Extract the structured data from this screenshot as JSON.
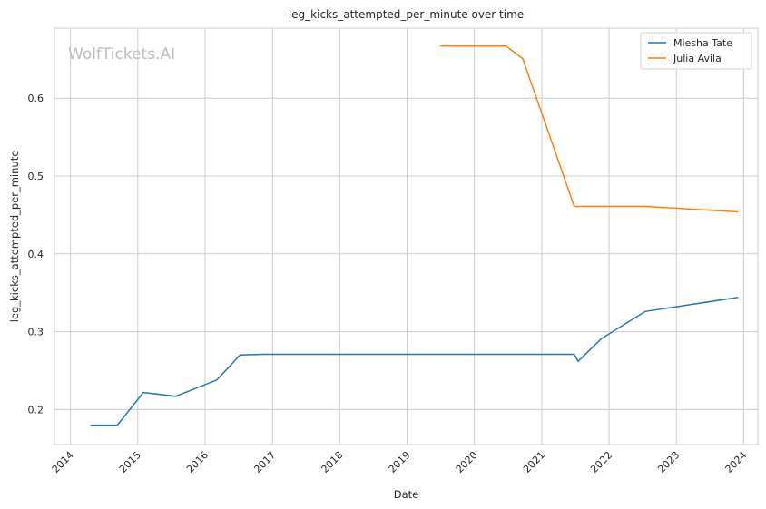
{
  "chart_data": {
    "type": "line",
    "title": "leg_kicks_attempted_per_minute over time",
    "xlabel": "Date",
    "ylabel": "leg_kicks_attempted_per_minute",
    "watermark": "WolfTickets.AI",
    "x_ticks": [
      "2014",
      "2015",
      "2016",
      "2017",
      "2018",
      "2019",
      "2020",
      "2021",
      "2022",
      "2023",
      "2024"
    ],
    "y_ticks": [
      "0.2",
      "0.3",
      "0.4",
      "0.5",
      "0.6"
    ],
    "xlim": [
      "2013-10-06",
      "2024-03-18"
    ],
    "ylim": [
      0.155,
      0.69
    ],
    "grid": true,
    "legend": "top-right",
    "series": [
      {
        "name": "Miesha Tate",
        "color": "#1f77b4",
        "points": [
          [
            "2014-04-19",
            0.18
          ],
          [
            "2014-09-12",
            0.18
          ],
          [
            "2015-01-31",
            0.222
          ],
          [
            "2015-07-25",
            0.217
          ],
          [
            "2016-03-05",
            0.238
          ],
          [
            "2016-07-09",
            0.27
          ],
          [
            "2016-11-12",
            0.271
          ],
          [
            "2021-06-26",
            0.271
          ],
          [
            "2021-07-17",
            0.262
          ],
          [
            "2021-11-20",
            0.291
          ],
          [
            "2022-07-16",
            0.326
          ],
          [
            "2023-12-02",
            0.344
          ]
        ]
      },
      {
        "name": "Julia Avila",
        "color": "#ff7f0e",
        "points": [
          [
            "2019-07-01",
            0.667
          ],
          [
            "2020-06-20",
            0.667
          ],
          [
            "2020-09-19",
            0.651
          ],
          [
            "2021-06-26",
            0.461
          ],
          [
            "2022-07-16",
            0.461
          ],
          [
            "2023-12-02",
            0.454
          ]
        ]
      }
    ]
  }
}
